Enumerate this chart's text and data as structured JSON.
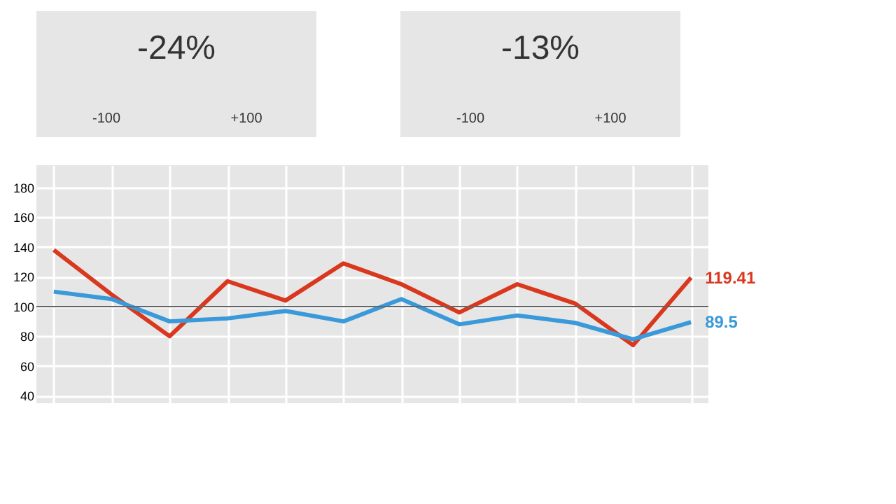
{
  "chart_data": [
    {
      "type": "other",
      "annotations": [
        "-24%",
        "-100",
        "+100"
      ]
    },
    {
      "type": "other",
      "annotations": [
        "-13%",
        "-100",
        "+100"
      ]
    },
    {
      "type": "line",
      "categories": [
        null,
        null,
        null,
        null,
        null,
        null,
        null,
        null,
        null,
        null,
        null,
        null
      ],
      "series": [
        {
          "color": "#d9381e",
          "values": [
            138,
            108,
            80,
            117,
            104,
            129,
            115,
            96,
            115,
            102,
            74,
            119.41
          ],
          "value_labels": [
            null,
            null,
            null,
            null,
            null,
            null,
            null,
            null,
            null,
            null,
            null,
            "119.41"
          ]
        },
        {
          "color": "#3a9ad9",
          "values": [
            110,
            105,
            90,
            92,
            97,
            90,
            105,
            88,
            94,
            89,
            78,
            89.5
          ],
          "value_labels": [
            null,
            null,
            null,
            null,
            null,
            null,
            null,
            null,
            null,
            null,
            null,
            "89.5"
          ]
        }
      ],
      "ylim": [
        35,
        195
      ],
      "yticks": [
        40,
        60,
        80,
        100,
        120,
        140,
        160,
        180
      ],
      "grid": true,
      "tick_labels": "y",
      "ref_lines": [
        {
          "axis": "y",
          "value": 100,
          "color": "#666666"
        }
      ]
    }
  ]
}
